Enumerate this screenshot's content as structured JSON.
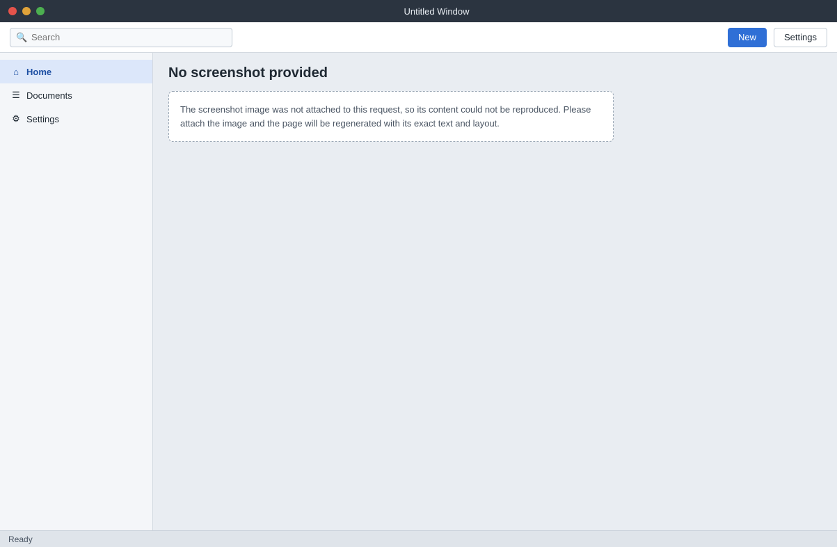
{
  "window": {
    "title": "Untitled Window"
  },
  "toolbar": {
    "search_placeholder": "Search",
    "new_label": "New",
    "settings_label": "Settings"
  },
  "sidebar": {
    "items": [
      {
        "label": "Home"
      },
      {
        "label": "Documents"
      },
      {
        "label": "Settings"
      }
    ]
  },
  "main": {
    "title": "No screenshot provided",
    "notice": "The screenshot image was not attached to this request, so its content could not be reproduced. Please attach the image and the page will be regenerated with its exact text and layout."
  },
  "status": {
    "text": "Ready"
  },
  "colors": {
    "accent": "#2f6fd6",
    "titlebar": "#2b3440"
  }
}
